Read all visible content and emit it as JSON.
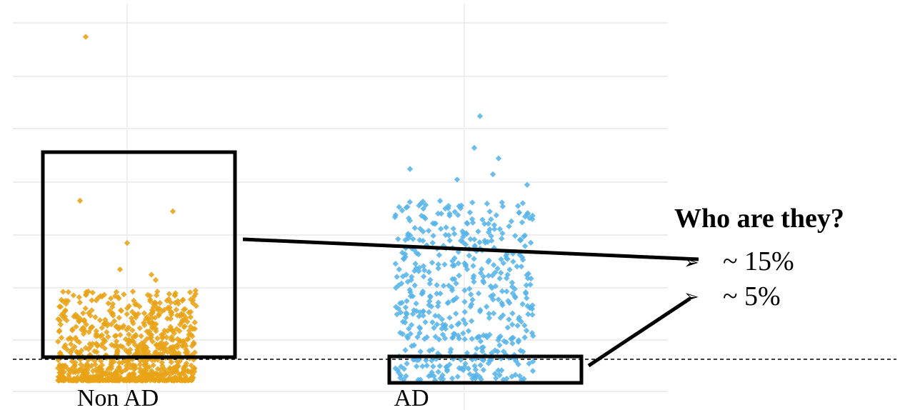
{
  "chart_data": {
    "type": "scatter",
    "subtype": "jitter-strip",
    "categories": [
      "Non AD",
      "AD"
    ],
    "marker": "diamond",
    "grid": true,
    "reference_line": "dashed horizontal line near the bottom of both groups",
    "series": [
      {
        "category": "Non AD",
        "color": "#E8A317",
        "n_points": 900,
        "bulk_range": [
          -0.4,
          1.3
        ],
        "outliers": [
          6.1,
          3.0,
          2.8,
          2.2,
          1.7,
          1.6,
          1.5
        ]
      },
      {
        "category": "AD",
        "color": "#56B4E9",
        "n_points": 520,
        "bulk_range": [
          -0.4,
          3.0
        ],
        "outliers": [
          4.6,
          4.0,
          3.8,
          3.6,
          3.5,
          3.4,
          3.3
        ]
      }
    ]
  },
  "annotation": {
    "title": "Who are they?",
    "items": [
      {
        "symbol": "➢",
        "text": "~ 15%"
      },
      {
        "symbol": "➢",
        "text": "~ 5%"
      }
    ]
  },
  "colors": {
    "non_ad": "#E8A317",
    "ad": "#56B4E9",
    "grid": "#e6e6e6",
    "box": "#000000"
  }
}
